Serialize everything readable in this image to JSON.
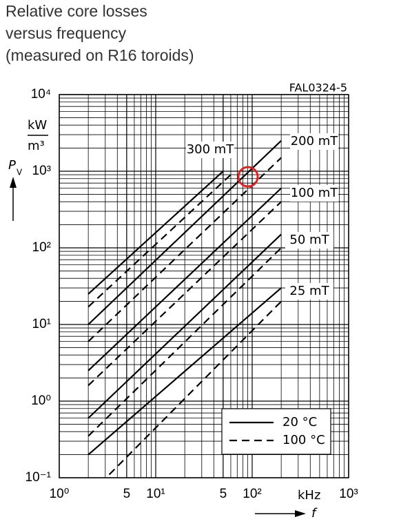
{
  "chart_data": {
    "type": "line",
    "title_lines": [
      "Relative core losses",
      "versus frequency",
      "(measured on R16 toroids)"
    ],
    "figure_id": "FAL0324-5",
    "y_label": "P",
    "y_label_sub": "V",
    "y_unit": {
      "numerator": "kW",
      "denominator": "m³"
    },
    "x_label": "f",
    "x_unit": "kHz",
    "log_x": true,
    "log_y": true,
    "grid": true,
    "xlim": [
      1,
      1000
    ],
    "ylim": [
      0.1,
      10000
    ],
    "xticks": [
      {
        "value": 1,
        "label": "10⁰"
      },
      5,
      {
        "value": 10,
        "label": "10¹"
      },
      {
        "value": 50,
        "label": "5"
      },
      {
        "value": 100,
        "label": "10²"
      },
      {
        "value": 1000,
        "label": "10³"
      }
    ],
    "yticks": [
      {
        "value": 0.1,
        "label": "10⁻¹"
      },
      {
        "value": 1,
        "label": "10⁰"
      },
      {
        "value": 10,
        "label": "10¹"
      },
      {
        "value": 100,
        "label": "10²"
      },
      {
        "value": 1000,
        "label": "10³"
      },
      {
        "value": 10000,
        "label": "10⁴"
      }
    ],
    "x_minor_ticks": [
      2,
      3,
      4,
      5,
      6,
      7,
      8,
      9,
      20,
      30,
      40,
      50,
      60,
      70,
      80,
      90,
      200,
      300,
      400,
      500,
      600,
      700,
      800,
      900
    ],
    "y_minor_ticks": [
      0.2,
      0.3,
      0.4,
      0.5,
      0.6,
      0.7,
      0.8,
      0.9,
      2,
      3,
      4,
      5,
      6,
      7,
      8,
      9,
      20,
      30,
      40,
      50,
      60,
      70,
      80,
      90,
      200,
      300,
      400,
      500,
      600,
      700,
      800,
      900,
      2000,
      3000,
      4000,
      5000,
      6000,
      7000,
      8000,
      9000
    ],
    "color": "#000000",
    "legend": [
      {
        "label": "20 °C",
        "dash": false
      },
      {
        "label": "100 °C",
        "dash": true
      }
    ],
    "curves": [
      {
        "label": "300 mT",
        "lines": [
          {
            "dash": false,
            "x": [
              2,
              50
            ],
            "y": [
              25,
              1000
            ]
          },
          {
            "dash": true,
            "x": [
              2,
              60
            ],
            "y": [
              17,
              900
            ]
          }
        ]
      },
      {
        "label": "200 mT",
        "lines": [
          {
            "dash": false,
            "x": [
              2,
              200
            ],
            "y": [
              10,
              2500
            ]
          },
          {
            "dash": true,
            "x": [
              2,
              200
            ],
            "y": [
              6,
              1500
            ]
          }
        ]
      },
      {
        "label": "100 mT",
        "lines": [
          {
            "dash": false,
            "x": [
              2,
              200
            ],
            "y": [
              2.5,
              600
            ]
          },
          {
            "dash": true,
            "x": [
              2,
              200
            ],
            "y": [
              1.6,
              400
            ]
          }
        ]
      },
      {
        "label": "50 mT",
        "lines": [
          {
            "dash": false,
            "x": [
              2,
              200
            ],
            "y": [
              0.6,
              150
            ]
          },
          {
            "dash": true,
            "x": [
              2,
              200
            ],
            "y": [
              0.35,
              100
            ]
          }
        ]
      },
      {
        "label": "25 mT",
        "lines": [
          {
            "dash": false,
            "x": [
              2,
              200
            ],
            "y": [
              0.2,
              30
            ]
          },
          {
            "dash": true,
            "x": [
              3.3,
              200
            ],
            "y": [
              0.11,
              20
            ]
          }
        ]
      }
    ]
  }
}
